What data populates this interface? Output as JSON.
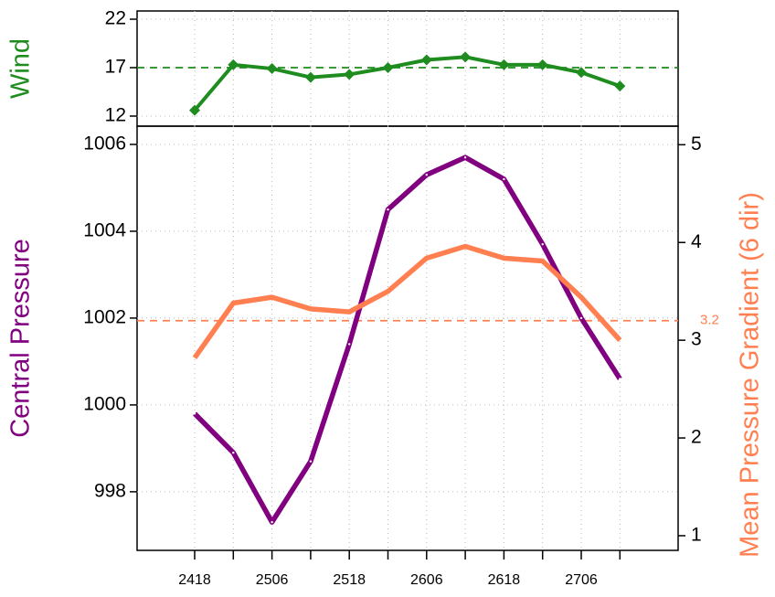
{
  "chart_data": [
    {
      "type": "line",
      "ylabel": "Wind",
      "ylabel_color": "#1e8c1e",
      "series": [
        {
          "name": "Wind",
          "color": "#1e8c1e",
          "marker": "diamond",
          "values": [
            12.6,
            17.3,
            16.9,
            16.0,
            16.3,
            17.0,
            17.8,
            18.1,
            17.3,
            17.3,
            16.5,
            15.1
          ]
        }
      ],
      "ylim": [
        10.96,
        22.85
      ],
      "yticks": [
        12,
        17,
        22
      ],
      "grid": true,
      "ref_line": {
        "value": 17,
        "color": "#1e8c1e"
      }
    },
    {
      "type": "line",
      "ylabel": "Central Pressure",
      "ylabel_color": "#800080",
      "y2label": "Mean Pressure Gradient (6 dir)",
      "y2label_color": "#ff7f50",
      "categories": [
        "2418",
        null,
        "2506",
        null,
        "2518",
        null,
        "2606",
        null,
        "2618",
        null,
        "2706",
        null
      ],
      "series": [
        {
          "name": "Central Pressure",
          "color": "#800080",
          "marker": "dot",
          "values": [
            999.8,
            998.9,
            997.3,
            998.7,
            1001.4,
            1004.5,
            1005.3,
            1005.7,
            1005.2,
            1003.7,
            1002.0,
            1000.6
          ]
        },
        {
          "name": "Mean Pressure Gradient (6 dir)",
          "color": "#ff7f50",
          "axis": "y2",
          "marker": "none",
          "values": [
            2.82,
            3.38,
            3.44,
            3.32,
            3.29,
            3.5,
            3.84,
            3.96,
            3.84,
            3.81,
            3.44,
            3.0
          ]
        }
      ],
      "ylim": [
        996.65,
        1006.42
      ],
      "yticks": [
        998,
        1000,
        1002,
        1004,
        1006
      ],
      "y2lim": [
        0.85,
        5.19
      ],
      "y2ticks": [
        1,
        2,
        3,
        4,
        5
      ],
      "grid": true,
      "ref_line": {
        "value": 3.2,
        "axis": "y2",
        "color": "#ff7f50"
      }
    }
  ]
}
